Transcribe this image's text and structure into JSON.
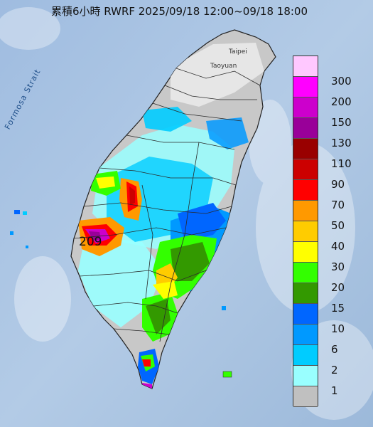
{
  "title": "累積6小時 RWRF 2025/09/18 12:00~09/18 18:00",
  "strait_label": "Formosa Strait",
  "places": {
    "taipei": "Taipei",
    "taoyuan": "Taoyuan"
  },
  "max_value_label": "209",
  "legend": [
    {
      "label": "300",
      "color": "#ffc8ff"
    },
    {
      "label": "200",
      "color": "#ff00ff"
    },
    {
      "label": "150",
      "color": "#cc00cc"
    },
    {
      "label": "130",
      "color": "#990099"
    },
    {
      "label": "110",
      "color": "#990000"
    },
    {
      "label": "90",
      "color": "#cc0000"
    },
    {
      "label": "70",
      "color": "#ff0000"
    },
    {
      "label": "50",
      "color": "#ff9900"
    },
    {
      "label": "40",
      "color": "#ffcc00"
    },
    {
      "label": "30",
      "color": "#ffff00"
    },
    {
      "label": "20",
      "color": "#33ff00"
    },
    {
      "label": "15",
      "color": "#339900"
    },
    {
      "label": "10",
      "color": "#0066ff"
    },
    {
      "label": "6",
      "color": "#0099ff"
    },
    {
      "label": "2",
      "color": "#00ccff"
    },
    {
      "label": "1",
      "color": "#99ffff"
    },
    {
      "label": "",
      "color": "#c0c0c0"
    }
  ],
  "colors": {
    "sea": "#a9c3e0",
    "land_dry": "#c8c8c8",
    "boundary": "#2a2a2a"
  }
}
